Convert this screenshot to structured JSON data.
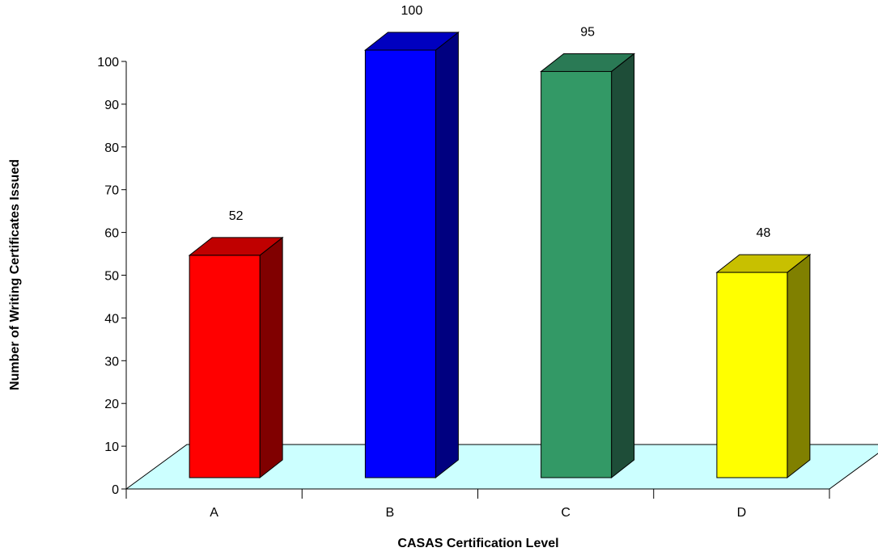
{
  "chart_data": {
    "type": "bar",
    "categories": [
      "A",
      "B",
      "C",
      "D"
    ],
    "values": [
      52,
      100,
      95,
      48
    ],
    "data_labels": [
      "52",
      "100",
      "95",
      "48"
    ],
    "xlabel": "CASAS Certification Level",
    "ylabel": "Number of Writing Certificates Issued",
    "ylim": [
      0,
      100
    ],
    "yticks": [
      "0",
      "10",
      "20",
      "30",
      "40",
      "50",
      "60",
      "70",
      "80",
      "90",
      "100"
    ],
    "grid": false,
    "legend": "none",
    "three_d": true,
    "floor_color": "#CCFFFF",
    "bar_colors": [
      {
        "front": "#FF0000",
        "top": "#C00000",
        "side": "#800000"
      },
      {
        "front": "#0000FF",
        "top": "#0000C0",
        "side": "#000080"
      },
      {
        "front": "#339966",
        "top": "#2A7A55",
        "side": "#1E4D38"
      },
      {
        "front": "#FFFF00",
        "top": "#C8C000",
        "side": "#808000"
      }
    ]
  }
}
